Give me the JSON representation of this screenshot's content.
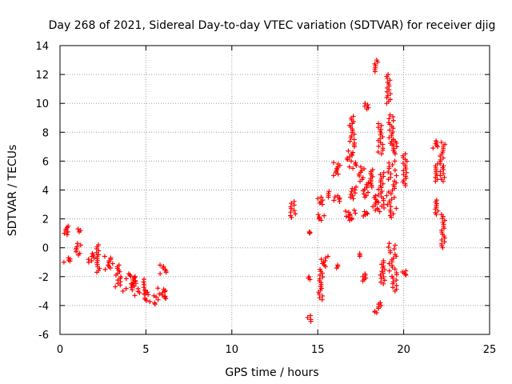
{
  "chart_data": {
    "type": "scatter",
    "title": "Day 268 of 2021, Sidereal Day-to-day VTEC variation (SDTVAR) for receiver djig",
    "xlabel": "GPS time / hours",
    "ylabel": "SDTVAR / TECUs",
    "xlim": [
      0,
      25
    ],
    "ylim": [
      -6,
      14
    ],
    "xticks": [
      0,
      5,
      10,
      15,
      20,
      25
    ],
    "yticks": [
      -6,
      -4,
      -2,
      0,
      2,
      4,
      6,
      8,
      10,
      12,
      14
    ],
    "grid": true,
    "marker": "+",
    "color": "#ff0000",
    "clusters": [
      {
        "x": [
          0.2,
          0.5
        ],
        "y": [
          0.9,
          1.5
        ]
      },
      {
        "x": [
          0.2,
          0.6
        ],
        "y": [
          -1.0,
          -0.7
        ]
      },
      {
        "x": [
          0.9,
          1.2
        ],
        "y": [
          -0.5,
          0.3
        ]
      },
      {
        "x": [
          1.0,
          1.2
        ],
        "y": [
          1.1,
          1.3
        ]
      },
      {
        "x": [
          1.6,
          2.0
        ],
        "y": [
          -1.0,
          -0.4
        ]
      },
      {
        "x": [
          2.1,
          2.3
        ],
        "y": [
          -1.7,
          0.2
        ]
      },
      {
        "x": [
          2.6,
          3.1
        ],
        "y": [
          -1.5,
          -0.6
        ]
      },
      {
        "x": [
          3.2,
          3.6
        ],
        "y": [
          -2.7,
          -1.2
        ]
      },
      {
        "x": [
          3.6,
          4.4
        ],
        "y": [
          -3.0,
          -1.8
        ]
      },
      {
        "x": [
          4.3,
          5.0
        ],
        "y": [
          -3.3,
          -2.0
        ]
      },
      {
        "x": [
          4.9,
          5.6
        ],
        "y": [
          -3.9,
          -3.0
        ]
      },
      {
        "x": [
          5.6,
          6.2
        ],
        "y": [
          -3.6,
          -2.8
        ]
      },
      {
        "x": [
          5.8,
          6.2
        ],
        "y": [
          -1.8,
          -1.2
        ]
      },
      {
        "x": [
          13.4,
          13.7
        ],
        "y": [
          2.1,
          3.2
        ]
      },
      {
        "x": [
          14.4,
          14.6
        ],
        "y": [
          -5.1,
          -4.7
        ]
      },
      {
        "x": [
          14.4,
          14.6
        ],
        "y": [
          -2.2,
          -2.0
        ]
      },
      {
        "x": [
          14.5,
          14.6
        ],
        "y": [
          1.0,
          1.1
        ]
      },
      {
        "x": [
          15.0,
          15.3
        ],
        "y": [
          -3.6,
          -1.5
        ]
      },
      {
        "x": [
          15.2,
          15.6
        ],
        "y": [
          -1.3,
          -0.6
        ]
      },
      {
        "x": [
          15.0,
          15.4
        ],
        "y": [
          1.9,
          2.3
        ]
      },
      {
        "x": [
          15.0,
          15.3
        ],
        "y": [
          3.0,
          3.5
        ]
      },
      {
        "x": [
          15.5,
          15.7
        ],
        "y": [
          3.5,
          3.9
        ]
      },
      {
        "x": [
          15.9,
          16.3
        ],
        "y": [
          3.2,
          3.6
        ]
      },
      {
        "x": [
          15.9,
          16.3
        ],
        "y": [
          5.0,
          5.9
        ]
      },
      {
        "x": [
          16.0,
          16.2
        ],
        "y": [
          -1.4,
          -1.2
        ]
      },
      {
        "x": [
          16.7,
          17.3
        ],
        "y": [
          5.5,
          6.7
        ]
      },
      {
        "x": [
          16.8,
          17.2
        ],
        "y": [
          7.0,
          9.1
        ]
      },
      {
        "x": [
          16.6,
          17.3
        ],
        "y": [
          1.9,
          2.6
        ]
      },
      {
        "x": [
          16.9,
          17.3
        ],
        "y": [
          3.4,
          4.2
        ]
      },
      {
        "x": [
          17.4,
          17.7
        ],
        "y": [
          4.6,
          5.6
        ]
      },
      {
        "x": [
          17.4,
          17.6
        ],
        "y": [
          -0.6,
          -0.4
        ]
      },
      {
        "x": [
          17.6,
          17.9
        ],
        "y": [
          -2.3,
          -1.8
        ]
      },
      {
        "x": [
          17.7,
          18.0
        ],
        "y": [
          9.6,
          10.0
        ]
      },
      {
        "x": [
          17.6,
          18.0
        ],
        "y": [
          3.5,
          4.5
        ]
      },
      {
        "x": [
          17.6,
          17.9
        ],
        "y": [
          2.2,
          2.5
        ]
      },
      {
        "x": [
          18.0,
          18.3
        ],
        "y": [
          4.2,
          5.4
        ]
      },
      {
        "x": [
          18.2,
          18.5
        ],
        "y": [
          2.6,
          3.6
        ]
      },
      {
        "x": [
          18.3,
          18.5
        ],
        "y": [
          -4.5,
          -4.4
        ]
      },
      {
        "x": [
          18.3,
          18.5
        ],
        "y": [
          12.2,
          13.0
        ]
      },
      {
        "x": [
          18.5,
          18.8
        ],
        "y": [
          -4.2,
          -3.8
        ]
      },
      {
        "x": [
          18.5,
          18.8
        ],
        "y": [
          6.5,
          8.6
        ]
      },
      {
        "x": [
          18.5,
          18.9
        ],
        "y": [
          2.5,
          5.2
        ]
      },
      {
        "x": [
          18.6,
          18.9
        ],
        "y": [
          -2.5,
          -0.9
        ]
      },
      {
        "x": [
          19.0,
          19.3
        ],
        "y": [
          10.0,
          12.0
        ]
      },
      {
        "x": [
          19.1,
          19.4
        ],
        "y": [
          7.1,
          9.2
        ]
      },
      {
        "x": [
          19.0,
          19.6
        ],
        "y": [
          2.1,
          6.0
        ]
      },
      {
        "x": [
          19.1,
          19.6
        ],
        "y": [
          -3.0,
          0.3
        ]
      },
      {
        "x": [
          19.4,
          19.6
        ],
        "y": [
          6.5,
          7.5
        ]
      },
      {
        "x": [
          19.9,
          20.2
        ],
        "y": [
          4.3,
          6.5
        ]
      },
      {
        "x": [
          19.9,
          20.2
        ],
        "y": [
          -1.9,
          -1.6
        ]
      },
      {
        "x": [
          21.7,
          22.0
        ],
        "y": [
          6.9,
          7.4
        ]
      },
      {
        "x": [
          21.8,
          22.0
        ],
        "y": [
          4.6,
          5.8
        ]
      },
      {
        "x": [
          21.8,
          22.0
        ],
        "y": [
          2.3,
          3.3
        ]
      },
      {
        "x": [
          22.1,
          22.4
        ],
        "y": [
          4.6,
          7.3
        ]
      },
      {
        "x": [
          22.2,
          22.4
        ],
        "y": [
          0.0,
          2.3
        ]
      }
    ]
  }
}
